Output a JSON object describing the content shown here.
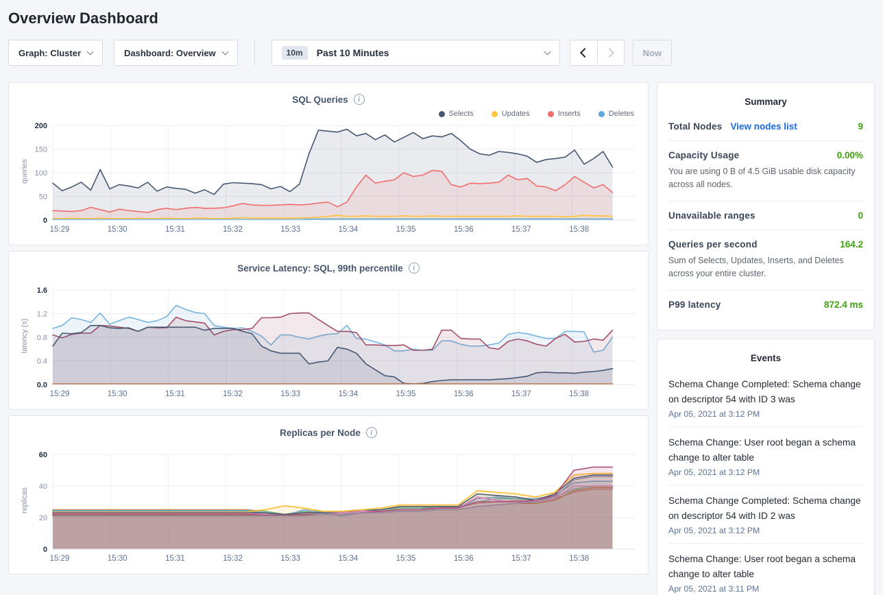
{
  "page": {
    "title": "Overview Dashboard"
  },
  "toolbar": {
    "graph_selector": "Graph: Cluster",
    "dashboard_selector": "Dashboard: Overview",
    "range_badge": "10m",
    "range_label": "Past 10 Minutes",
    "now_label": "Now"
  },
  "summary": {
    "title": "Summary",
    "rows": [
      {
        "label": "Total Nodes",
        "link": "View nodes list",
        "value": "9"
      },
      {
        "label": "Capacity Usage",
        "value": "0.00%",
        "subtext": "You are using 0 B of 4.5 GiB usable disk capacity across all nodes."
      },
      {
        "label": "Unavailable ranges",
        "value": "0"
      },
      {
        "label": "Queries per second",
        "value": "164.2",
        "subtext": "Sum of Selects, Updates, Inserts, and Deletes across your entire cluster."
      },
      {
        "label": "P99 latency",
        "value": "872.4 ms"
      }
    ]
  },
  "events": {
    "title": "Events",
    "items": [
      {
        "text": "Schema Change Completed: Schema change on descriptor 54 with ID 3 was",
        "time": "Apr 05, 2021 at 3:12 PM"
      },
      {
        "text": "Schema Change: User root began a schema change to alter table",
        "time": "Apr 05, 2021 at 3:12 PM"
      },
      {
        "text": "Schema Change Completed: Schema change on descriptor 54 with ID 2 was",
        "time": "Apr 05, 2021 at 3:12 PM"
      },
      {
        "text": "Schema Change: User root began a schema change to alter table",
        "time": "Apr 05, 2021 at 3:11 PM"
      }
    ]
  },
  "colors": {
    "link_blue": "#1d6ae5",
    "metric_green": "#3da30b",
    "selects_navy": "#475872",
    "updates_yellow": "#ffc53d",
    "inserts_red": "#f16d6d",
    "deletes_blue": "#5ca9db"
  },
  "chart_data": [
    {
      "type": "line",
      "title": "SQL Queries",
      "ylabel": "queries",
      "ylim": [
        0,
        200
      ],
      "y_ticks": [
        "0",
        "50",
        "100",
        "150",
        "200"
      ],
      "x_ticks": [
        "15:29",
        "15:30",
        "15:31",
        "15:32",
        "15:33",
        "15:34",
        "15:35",
        "15:36",
        "15:37",
        "15:38"
      ],
      "x_domain_minutes": 10.05,
      "x_data_minutes": 9.7,
      "fill_opacity": 0.12,
      "grid": true,
      "legend_position": "top-right",
      "legend": [
        {
          "label": "Selects",
          "color": "#475872"
        },
        {
          "label": "Updates",
          "color": "#ffc53d"
        },
        {
          "label": "Inserts",
          "color": "#f16d6d"
        },
        {
          "label": "Deletes",
          "color": "#5ca9db"
        }
      ],
      "series": [
        {
          "name": "Selects",
          "color": "#475872",
          "values": [
            78,
            62,
            70,
            80,
            63,
            107,
            66,
            75,
            72,
            68,
            80,
            61,
            70,
            67,
            65,
            57,
            64,
            54,
            76,
            79,
            78,
            77,
            75,
            66,
            71,
            60,
            76,
            140,
            190,
            188,
            186,
            192,
            178,
            183,
            170,
            180,
            165,
            175,
            185,
            172,
            178,
            176,
            183,
            168,
            150,
            140,
            137,
            145,
            143,
            140,
            135,
            122,
            128,
            130,
            133,
            148,
            118,
            130,
            145,
            112
          ]
        },
        {
          "name": "Inserts",
          "color": "#f16d6d",
          "values": [
            20,
            19,
            18,
            20,
            27,
            22,
            17,
            23,
            20,
            18,
            16,
            22,
            25,
            22,
            25,
            27,
            25,
            25,
            26,
            30,
            35,
            32,
            31,
            31,
            32,
            33,
            32,
            33,
            36,
            38,
            28,
            38,
            70,
            95,
            78,
            82,
            85,
            100,
            92,
            95,
            105,
            103,
            75,
            70,
            78,
            77,
            78,
            80,
            95,
            85,
            88,
            72,
            70,
            62,
            75,
            92,
            80,
            68,
            75,
            58
          ]
        },
        {
          "name": "Updates",
          "color": "#ffc53d",
          "values": [
            3,
            3,
            4,
            3,
            3,
            4,
            3,
            3,
            3,
            4,
            3,
            3,
            4,
            3,
            3,
            4,
            4,
            3,
            3,
            4,
            5,
            4,
            4,
            4,
            4,
            4,
            4,
            5,
            6,
            8,
            10,
            8,
            8,
            9,
            8,
            8,
            8,
            9,
            8,
            8,
            9,
            8,
            8,
            8,
            8,
            8,
            8,
            8,
            8,
            9,
            8,
            8,
            8,
            8,
            7,
            8,
            10,
            9,
            9,
            8
          ]
        },
        {
          "name": "Deletes",
          "color": "#5ca9db",
          "values": [
            1,
            1,
            1,
            1,
            1,
            1,
            1,
            1,
            1,
            1,
            1,
            1,
            1,
            1,
            1,
            1,
            1,
            1,
            1,
            1,
            1,
            1,
            1,
            1,
            1,
            1,
            1,
            2,
            2,
            2,
            2,
            2,
            2,
            2,
            2,
            2,
            2,
            2,
            2,
            2,
            2,
            2,
            2,
            2,
            2,
            2,
            2,
            2,
            2,
            2,
            2,
            2,
            2,
            2,
            2,
            2,
            2,
            2,
            2,
            2
          ]
        }
      ]
    },
    {
      "type": "line",
      "title": "Service Latency: SQL, 99th percentile",
      "ylabel": "latency (s)",
      "ylim": [
        0,
        1.6
      ],
      "y_ticks": [
        "0.0",
        "0.4",
        "0.8",
        "1.2",
        "1.6"
      ],
      "x_ticks": [
        "15:29",
        "15:30",
        "15:31",
        "15:32",
        "15:33",
        "15:34",
        "15:35",
        "15:36",
        "15:37",
        "15:38"
      ],
      "x_domain_minutes": 10.05,
      "x_data_minutes": 9.7,
      "fill_opacity": 0.13,
      "grid": true,
      "series": [
        {
          "color": "#76b4e0",
          "values": [
            0.95,
            1.0,
            1.13,
            1.1,
            1.05,
            1.21,
            1.02,
            1.08,
            1.14,
            1.1,
            1.05,
            1.08,
            1.15,
            1.34,
            1.27,
            1.22,
            1.2,
            1.0,
            0.97,
            0.95,
            0.96,
            0.9,
            0.82,
            0.67,
            0.84,
            0.84,
            0.8,
            0.77,
            0.82,
            0.85,
            0.86,
            1.0,
            0.78,
            0.77,
            0.72,
            0.67,
            0.57,
            0.57,
            0.6,
            0.58,
            0.58,
            0.74,
            0.74,
            0.68,
            0.65,
            0.65,
            0.67,
            0.7,
            0.85,
            0.88,
            0.86,
            0.82,
            0.78,
            0.78,
            0.9,
            0.9,
            0.89,
            0.55,
            0.58,
            0.8
          ]
        },
        {
          "color": "#a14e66",
          "values": [
            0.84,
            0.79,
            0.85,
            0.87,
            0.87,
            1.0,
            0.99,
            0.97,
            0.95,
            0.9,
            0.97,
            0.96,
            0.96,
            1.14,
            1.08,
            1.06,
            1.04,
            0.84,
            0.9,
            0.93,
            0.93,
            0.95,
            1.13,
            1.13,
            1.14,
            1.2,
            1.21,
            1.21,
            1.1,
            1.0,
            0.9,
            0.9,
            0.88,
            0.67,
            0.67,
            0.66,
            0.66,
            0.67,
            0.58,
            0.58,
            0.6,
            0.92,
            0.92,
            0.78,
            0.77,
            0.77,
            0.62,
            0.6,
            0.73,
            0.77,
            0.74,
            0.68,
            0.65,
            0.78,
            0.85,
            0.72,
            0.73,
            0.77,
            0.75,
            0.92
          ]
        },
        {
          "color": "#475872",
          "values": [
            0.65,
            0.87,
            0.86,
            0.88,
            1.0,
            1.0,
            0.96,
            0.95,
            0.96,
            0.9,
            0.97,
            0.97,
            0.97,
            0.97,
            0.97,
            0.97,
            0.92,
            0.95,
            0.95,
            0.95,
            0.9,
            0.86,
            0.65,
            0.57,
            0.53,
            0.53,
            0.53,
            0.35,
            0.38,
            0.4,
            0.63,
            0.6,
            0.53,
            0.35,
            0.25,
            0.15,
            0.13,
            0.02,
            0.01,
            0.02,
            0.05,
            0.07,
            0.08,
            0.08,
            0.08,
            0.08,
            0.08,
            0.09,
            0.1,
            0.12,
            0.14,
            0.2,
            0.21,
            0.2,
            0.2,
            0.19,
            0.21,
            0.22,
            0.24,
            0.27
          ]
        },
        {
          "color": "#bd6b34",
          "values": [
            0.01,
            0.01
          ]
        }
      ]
    },
    {
      "type": "line",
      "title": "Replicas per Node",
      "ylabel": "replicas",
      "ylim": [
        0,
        60
      ],
      "y_ticks": [
        "0",
        "20",
        "40",
        "60"
      ],
      "x_ticks": [
        "15:29",
        "15:30",
        "15:31",
        "15:32",
        "15:33",
        "15:34",
        "15:35",
        "15:36",
        "15:37",
        "15:38"
      ],
      "x_domain_minutes": 10.05,
      "x_data_minutes": 9.7,
      "fill_opacity": 0.13,
      "grid": true,
      "series": [
        {
          "color": "#e17a72",
          "values": [
            25,
            25,
            25,
            25,
            25,
            25,
            25,
            25,
            25,
            25,
            25,
            24,
            22,
            23,
            24,
            24,
            24,
            25,
            26,
            26,
            26,
            27,
            29,
            30,
            31,
            30,
            32,
            36,
            38,
            38
          ]
        },
        {
          "color": "#58b896",
          "values": [
            24.5,
            24.5,
            24.5,
            24.5,
            24.5,
            24.5,
            24.5,
            24.5,
            24.5,
            24.5,
            24.5,
            24,
            22,
            24,
            24,
            24,
            25,
            25,
            26,
            26,
            27,
            27,
            30,
            32,
            32,
            31,
            33,
            38,
            40,
            40
          ]
        },
        {
          "color": "#6ca2d8",
          "values": [
            24,
            24,
            24,
            24,
            24,
            24,
            24,
            24,
            24,
            24,
            24,
            23,
            21,
            25,
            23,
            21,
            23,
            24,
            25,
            25,
            26,
            26,
            32,
            33,
            32,
            32,
            34,
            42,
            43,
            43
          ]
        },
        {
          "color": "#fdbb2a",
          "values": [
            23.5,
            23.5,
            23.5,
            23.5,
            23.5,
            23.5,
            23.5,
            23.5,
            23.5,
            23.5,
            23.5,
            25,
            27.5,
            26,
            24,
            24,
            25,
            26,
            28,
            28,
            28,
            28,
            37,
            36,
            35,
            33,
            36,
            47,
            48,
            48
          ]
        },
        {
          "color": "#4d5a6e",
          "values": [
            23,
            23,
            23,
            23,
            23,
            23,
            23,
            23,
            23,
            23,
            23,
            23,
            22,
            23,
            23,
            23,
            24,
            25,
            27,
            27,
            27,
            27,
            35,
            34,
            33,
            31,
            35,
            45,
            47,
            47
          ]
        },
        {
          "color": "#df7fb4",
          "values": [
            22.5,
            22.5,
            22.5,
            22.5,
            22.5,
            22.5,
            22.5,
            22.5,
            22.5,
            22.5,
            22.5,
            22,
            21,
            22,
            22,
            23,
            24,
            24,
            25,
            25,
            26,
            26,
            33,
            31,
            30,
            30,
            32,
            40,
            40,
            40
          ]
        },
        {
          "color": "#a9507a",
          "values": [
            22,
            22,
            22,
            22,
            22,
            22,
            22,
            22,
            22,
            22,
            22,
            21.5,
            21.5,
            22,
            22,
            22,
            23,
            24,
            25,
            25,
            26,
            26,
            30,
            30,
            30,
            31,
            34,
            50,
            52,
            52
          ]
        },
        {
          "color": "#ad7045",
          "values": [
            21.5,
            21.5,
            21.5,
            21.5,
            21.5,
            21.5,
            21.5,
            21.5,
            21.5,
            21.5,
            21.5,
            21,
            21,
            21.5,
            22,
            22,
            23,
            23,
            24,
            24,
            25,
            25,
            27,
            28,
            29,
            29,
            31,
            37,
            39,
            39
          ]
        },
        {
          "color": "#97879f",
          "values": [
            21,
            21,
            21,
            21,
            21,
            21,
            21,
            21,
            21,
            21,
            21,
            21,
            21,
            21,
            22,
            22,
            23,
            23,
            24,
            24,
            25,
            25,
            27,
            28,
            29,
            30,
            33,
            44,
            46,
            46
          ]
        }
      ]
    }
  ]
}
